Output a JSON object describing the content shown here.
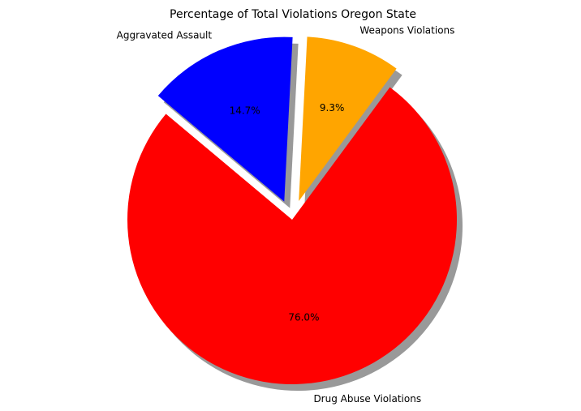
{
  "chart_data": {
    "type": "pie",
    "title": "Percentage of Total Violations Oregon State",
    "slices": [
      {
        "label": "Drug Abuse Violations",
        "value": 76.0,
        "pct_label": "76.0%",
        "color": "#ff0000",
        "exploded": false
      },
      {
        "label": "Weapons Violations",
        "value": 9.3,
        "pct_label": "9.3%",
        "color": "#ffa500",
        "exploded": true
      },
      {
        "label": "Aggravated Assault",
        "value": 14.7,
        "pct_label": "14.7%",
        "color": "#0000ff",
        "exploded": true
      }
    ],
    "shadow": true,
    "legend": "none"
  }
}
